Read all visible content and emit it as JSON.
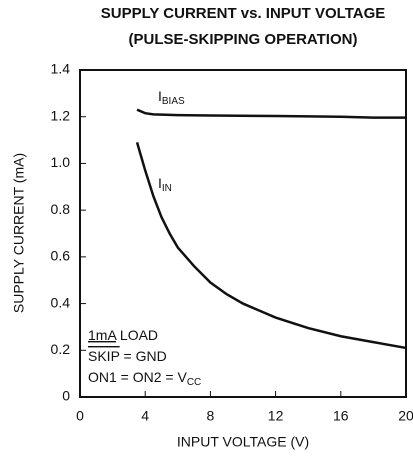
{
  "chart_data": {
    "type": "line",
    "title": "SUPPLY CURRENT vs. INPUT VOLTAGE",
    "subtitle": "(PULSE-SKIPPING OPERATION)",
    "xlabel": "INPUT VOLTAGE (V)",
    "ylabel": "SUPPLY CURRENT (mA)",
    "xlim": [
      0,
      20
    ],
    "ylim": [
      0,
      1.4
    ],
    "xticks": [
      0,
      4,
      8,
      12,
      16,
      20
    ],
    "yticks": [
      0,
      0.2,
      0.4,
      0.6,
      0.8,
      {
        "value": 1,
        "label": "1.0"
      },
      1.2,
      1.4
    ],
    "grid": false,
    "series": [
      {
        "label": "I",
        "label_sub": "BIAS",
        "color": "#111111",
        "x": [
          3.5,
          4,
          4.5,
          6,
          8,
          12,
          16,
          18,
          20
        ],
        "values": [
          1.23,
          1.215,
          1.21,
          1.207,
          1.205,
          1.203,
          1.2,
          1.196,
          1.196
        ]
      },
      {
        "label": "I",
        "label_sub": "IN",
        "color": "#111111",
        "x": [
          3.5,
          4,
          4.5,
          5,
          5.5,
          6,
          7,
          8,
          9,
          10,
          12,
          14,
          16,
          18,
          20
        ],
        "values": [
          1.09,
          0.97,
          0.86,
          0.77,
          0.7,
          0.64,
          0.56,
          0.49,
          0.44,
          0.4,
          0.34,
          0.295,
          0.26,
          0.235,
          0.21
        ]
      }
    ],
    "note": [
      [
        {
          "text": "1mA",
          "style": "underline"
        },
        {
          "text": " LOAD"
        }
      ],
      [
        {
          "text": "SKIP",
          "style": "overline"
        },
        {
          "text": " =  GND"
        }
      ],
      [
        {
          "text": "ON1 = ON2 = V"
        },
        {
          "text": "CC",
          "style": "sub"
        }
      ]
    ]
  }
}
